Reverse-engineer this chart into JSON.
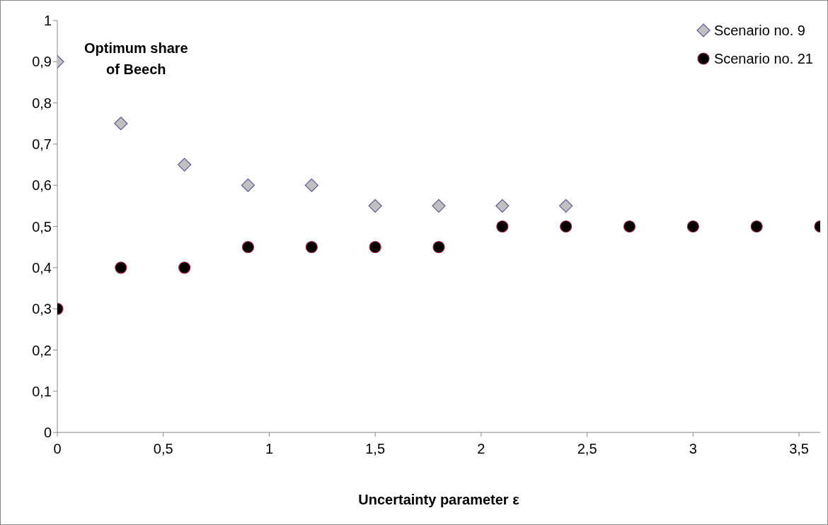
{
  "chart_data": {
    "type": "scatter",
    "title": "Optimum share of Beech",
    "xlabel": "Uncertainty parameter ε",
    "x": [
      0,
      0.3,
      0.6,
      0.9,
      1.2,
      1.5,
      1.8,
      2.1,
      2.4,
      2.7,
      3,
      3.3,
      3.6
    ],
    "series": [
      {
        "name": "Scenario no. 9",
        "color": "#c0c0c0",
        "marker": "diamond",
        "values": [
          0.9,
          0.75,
          0.65,
          0.6,
          0.6,
          0.55,
          0.55,
          0.55,
          0.55,
          null,
          null,
          null,
          null
        ]
      },
      {
        "name": "Scenario no. 21",
        "color": "#000000",
        "marker": "circle",
        "values": [
          0.3,
          0.4,
          0.4,
          0.45,
          0.45,
          0.45,
          0.45,
          0.5,
          0.5,
          0.5,
          0.5,
          0.5,
          0.5
        ]
      }
    ],
    "xlim": [
      0,
      3.6
    ],
    "xticks": [
      0,
      {
        "value": 0.5,
        "label": "0,5"
      },
      1,
      {
        "value": 1.5,
        "label": "1,5"
      },
      2,
      {
        "value": 2.5,
        "label": "2,5"
      },
      3,
      {
        "value": 3.5,
        "label": "3,5"
      }
    ],
    "ylim": [
      0,
      1
    ],
    "yticks": [
      0,
      {
        "value": 0.1,
        "label": "0,1"
      },
      {
        "value": 0.2,
        "label": "0,2"
      },
      {
        "value": 0.3,
        "label": "0,3"
      },
      {
        "value": 0.4,
        "label": "0,4"
      },
      {
        "value": 0.5,
        "label": "0,5"
      },
      {
        "value": 0.6,
        "label": "0,6"
      },
      {
        "value": 0.7,
        "label": "0,7"
      },
      {
        "value": 0.8,
        "label": "0,8"
      },
      {
        "value": 0.9,
        "label": "0,9"
      },
      1
    ],
    "grid": false,
    "legend": "top right"
  }
}
